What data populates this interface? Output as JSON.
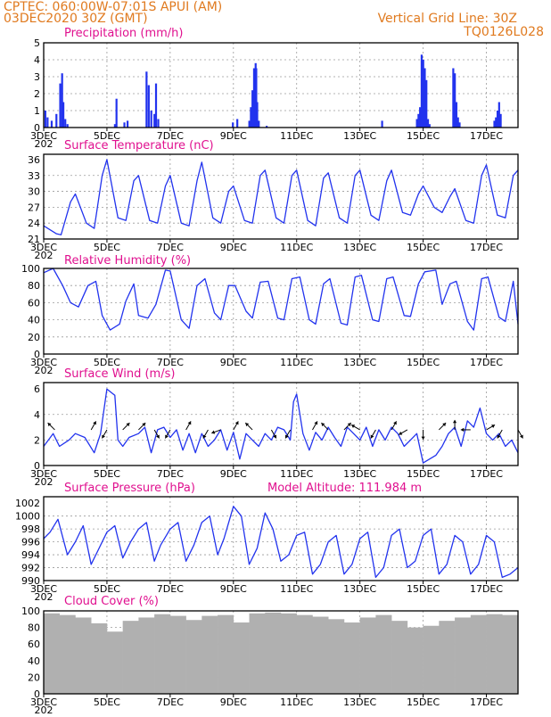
{
  "header": {
    "line1_left": "CPTEC:   060:00W-07:01S   APUI (AM)",
    "line2_left": "03DEC2020 30Z (GMT)",
    "line1_right": "Vertical Grid Line: 30Z",
    "line2_right": "TQ0126L028"
  },
  "x_axis": {
    "ticks": [
      "3DEC",
      "5DEC",
      "7DEC",
      "9DEC",
      "11DEC",
      "13DEC",
      "15DEC",
      "17DEC"
    ],
    "tick_day_offsets": [
      0,
      2,
      4,
      6,
      8,
      10,
      12,
      14
    ],
    "range_days": [
      0,
      15
    ],
    "year_fragment": "202"
  },
  "panels": {
    "precip": {
      "title": "Precipitation (mm/h)"
    },
    "temp": {
      "title": "Surface Temperature (nC)"
    },
    "rh": {
      "title": "Relative Humidity (%)"
    },
    "wind": {
      "title": "Surface Wind (m/s)"
    },
    "pres": {
      "title": "Surface Pressure (hPa)",
      "extra": "Model Altitude: 111.984 m"
    },
    "cloud": {
      "title": "Cloud Cover (%)"
    }
  },
  "colors": {
    "series": "#2233ee",
    "cloud": "#b0b0b0",
    "title": "#e0108f",
    "header": "#e07a1f",
    "arrow": "#000000"
  },
  "chart_data": [
    {
      "type": "bar",
      "name": "precip",
      "ylim": [
        0,
        5
      ],
      "yticks": [
        0,
        1,
        2,
        3,
        4,
        5
      ],
      "x": [
        0.05,
        0.12,
        0.25,
        0.4,
        0.52,
        0.58,
        0.62,
        0.68,
        0.75,
        2.25,
        2.3,
        2.55,
        2.65,
        3.25,
        3.32,
        3.4,
        3.5,
        3.55,
        3.62,
        5.98,
        6.12,
        6.5,
        6.55,
        6.6,
        6.65,
        6.7,
        6.72,
        6.75,
        6.8,
        7.05,
        10.7,
        11.8,
        11.85,
        11.9,
        11.95,
        12.0,
        12.05,
        12.1,
        12.15,
        12.2,
        12.95,
        13.0,
        13.05,
        13.1,
        13.15,
        14.25,
        14.3,
        14.35,
        14.4,
        14.45
      ],
      "values": [
        1.0,
        0.6,
        0.4,
        0.8,
        2.6,
        3.2,
        1.5,
        0.5,
        0.2,
        0.2,
        1.7,
        0.3,
        0.4,
        3.3,
        2.5,
        1.0,
        0.8,
        2.6,
        0.5,
        0.3,
        0.5,
        0.4,
        1.2,
        2.2,
        3.5,
        3.8,
        3.5,
        1.5,
        0.4,
        0.1,
        0.4,
        0.5,
        0.8,
        1.2,
        4.3,
        4.0,
        3.5,
        2.8,
        0.5,
        0.2,
        3.5,
        3.2,
        1.5,
        0.6,
        0.3,
        0.4,
        0.6,
        1.0,
        1.5,
        0.8
      ]
    },
    {
      "type": "line",
      "name": "temp",
      "ylim": [
        21,
        37
      ],
      "yticks": [
        21,
        24,
        27,
        30,
        33,
        36
      ],
      "x": [
        0,
        0.4,
        0.55,
        0.85,
        1.0,
        1.35,
        1.6,
        1.85,
        2.0,
        2.35,
        2.6,
        2.85,
        3.0,
        3.35,
        3.6,
        3.85,
        4.0,
        4.35,
        4.6,
        4.85,
        5.0,
        5.35,
        5.6,
        5.85,
        6.0,
        6.35,
        6.6,
        6.85,
        7.0,
        7.35,
        7.6,
        7.85,
        8.0,
        8.35,
        8.6,
        8.85,
        9.0,
        9.35,
        9.6,
        9.85,
        10.0,
        10.35,
        10.6,
        10.85,
        11.0,
        11.35,
        11.6,
        11.85,
        12.0,
        12.35,
        12.6,
        12.85,
        13.0,
        13.35,
        13.6,
        13.85,
        14.0,
        14.35,
        14.6,
        14.85,
        15.0
      ],
      "values": [
        23.5,
        22.0,
        21.8,
        28.0,
        29.5,
        24.0,
        23.0,
        33.0,
        36.0,
        25.0,
        24.5,
        32.0,
        33.0,
        24.5,
        24.0,
        31.0,
        33.0,
        24.0,
        23.5,
        32.0,
        35.5,
        25.0,
        24.0,
        30.0,
        31.0,
        24.5,
        24.0,
        33.0,
        34.0,
        25.0,
        24.0,
        33.0,
        34.0,
        24.5,
        23.5,
        32.5,
        33.5,
        25.0,
        24.0,
        33.0,
        34.0,
        25.5,
        24.5,
        32.0,
        34.0,
        26.0,
        25.5,
        29.5,
        31.0,
        27.0,
        26.0,
        29.0,
        30.5,
        24.5,
        24.0,
        33.0,
        35.0,
        25.5,
        25.0,
        33.0,
        34.0
      ]
    },
    {
      "type": "line",
      "name": "rh",
      "ylim": [
        0,
        100
      ],
      "yticks": [
        0,
        20,
        40,
        60,
        80,
        100
      ],
      "x": [
        0,
        0.3,
        0.6,
        0.85,
        1.1,
        1.4,
        1.65,
        1.85,
        2.1,
        2.4,
        2.6,
        2.85,
        3.0,
        3.3,
        3.55,
        3.85,
        4.0,
        4.35,
        4.6,
        4.85,
        5.1,
        5.4,
        5.6,
        5.85,
        6.05,
        6.4,
        6.6,
        6.85,
        7.1,
        7.4,
        7.6,
        7.85,
        8.1,
        8.4,
        8.6,
        8.85,
        9.05,
        9.4,
        9.6,
        9.85,
        10.05,
        10.4,
        10.6,
        10.85,
        11.05,
        11.4,
        11.6,
        11.85,
        12.05,
        12.4,
        12.6,
        12.85,
        13.05,
        13.4,
        13.6,
        13.85,
        14.05,
        14.4,
        14.6,
        14.85,
        15.0
      ],
      "values": [
        95,
        100,
        80,
        60,
        55,
        80,
        85,
        45,
        28,
        35,
        62,
        82,
        45,
        42,
        58,
        98,
        97,
        40,
        30,
        80,
        88,
        48,
        40,
        80,
        80,
        50,
        42,
        84,
        85,
        42,
        40,
        88,
        90,
        40,
        35,
        82,
        88,
        36,
        34,
        90,
        92,
        40,
        38,
        88,
        90,
        45,
        44,
        82,
        96,
        98,
        58,
        82,
        85,
        38,
        28,
        88,
        90,
        43,
        38,
        85,
        35
      ]
    },
    {
      "type": "line",
      "name": "wind",
      "ylim": [
        0,
        6.5
      ],
      "yticks": [
        0,
        2,
        4,
        6
      ],
      "x": [
        0,
        0.3,
        0.5,
        0.8,
        1.0,
        1.3,
        1.6,
        1.8,
        2.0,
        2.25,
        2.35,
        2.5,
        2.7,
        3.0,
        3.2,
        3.4,
        3.6,
        3.8,
        4.0,
        4.2,
        4.4,
        4.6,
        4.8,
        5.0,
        5.2,
        5.4,
        5.6,
        5.8,
        6.0,
        6.2,
        6.4,
        6.6,
        6.8,
        7.0,
        7.2,
        7.4,
        7.6,
        7.8,
        7.9,
        8.0,
        8.2,
        8.4,
        8.6,
        8.8,
        9.0,
        9.2,
        9.4,
        9.6,
        9.8,
        10.0,
        10.2,
        10.4,
        10.6,
        10.8,
        11.0,
        11.2,
        11.4,
        11.6,
        11.8,
        12.0,
        12.2,
        12.4,
        12.6,
        12.8,
        13.0,
        13.2,
        13.4,
        13.6,
        13.8,
        14.0,
        14.2,
        14.4,
        14.6,
        14.8,
        15.0
      ],
      "values": [
        1.5,
        2.5,
        1.5,
        2.0,
        2.5,
        2.2,
        1.0,
        2.5,
        6.0,
        5.5,
        2.0,
        1.5,
        2.2,
        2.5,
        3.0,
        1.0,
        2.8,
        3.0,
        2.2,
        2.8,
        1.2,
        2.5,
        1.0,
        2.5,
        1.5,
        2.0,
        2.8,
        1.2,
        2.6,
        0.5,
        2.5,
        2.0,
        1.5,
        2.5,
        2.0,
        3.0,
        2.8,
        2.0,
        5.0,
        5.6,
        2.5,
        1.2,
        2.6,
        2.0,
        3.0,
        2.2,
        1.5,
        3.0,
        2.5,
        2.0,
        3.0,
        1.5,
        2.8,
        2.0,
        3.0,
        2.5,
        1.5,
        2.0,
        2.5,
        0.2,
        0.5,
        0.8,
        1.5,
        2.5,
        3.0,
        1.5,
        3.5,
        3.0,
        4.5,
        2.5,
        2.0,
        2.5,
        1.5,
        2.0,
        1.0
      ],
      "arrows_x": [
        0.35,
        1.5,
        2.0,
        2.5,
        3.0,
        3.5,
        4.0,
        4.5,
        5.2,
        5.6,
        6.0,
        6.6,
        7.2,
        7.8,
        8.5,
        9.0,
        9.5,
        10.0,
        10.5,
        11.0,
        11.5,
        12.0,
        12.5,
        13.0,
        13.5,
        14.0,
        14.5,
        15.0
      ],
      "arrows_dir_deg": [
        135,
        60,
        240,
        45,
        45,
        300,
        240,
        60,
        240,
        200,
        60,
        135,
        300,
        240,
        60,
        135,
        45,
        150,
        240,
        60,
        210,
        270,
        45,
        90,
        180,
        30,
        240,
        300
      ]
    },
    {
      "type": "line",
      "name": "pres",
      "ylim": [
        990,
        1003
      ],
      "yticks": [
        990,
        992,
        994,
        996,
        998,
        1000,
        1002
      ],
      "x": [
        0,
        0.2,
        0.45,
        0.75,
        1.0,
        1.25,
        1.5,
        1.7,
        2.0,
        2.25,
        2.5,
        2.75,
        3.0,
        3.25,
        3.5,
        3.7,
        4.0,
        4.25,
        4.5,
        4.75,
        5.0,
        5.25,
        5.5,
        5.7,
        6.0,
        6.25,
        6.5,
        6.75,
        7.0,
        7.25,
        7.5,
        7.75,
        8.0,
        8.25,
        8.5,
        8.75,
        9.0,
        9.25,
        9.5,
        9.75,
        10.0,
        10.25,
        10.5,
        10.75,
        11.0,
        11.25,
        11.5,
        11.75,
        12.0,
        12.25,
        12.5,
        12.75,
        13.0,
        13.25,
        13.5,
        13.75,
        14.0,
        14.25,
        14.5,
        14.75,
        15.0
      ],
      "values": [
        996.5,
        997.5,
        999.5,
        994,
        996,
        998.5,
        992.5,
        994.5,
        997.5,
        998.5,
        993.5,
        996,
        998,
        999,
        993,
        995.5,
        998,
        999,
        993,
        995.5,
        999,
        1000,
        994,
        996.5,
        1001.5,
        1000,
        992.5,
        995,
        1000.5,
        998,
        993,
        994,
        997,
        997.5,
        991,
        992.5,
        996,
        997,
        991,
        992.5,
        996.5,
        997.5,
        990.5,
        992,
        997,
        998,
        992,
        993,
        997,
        998,
        991,
        992.5,
        997,
        996,
        991,
        992.5,
        997,
        996,
        990.5,
        991,
        992
      ]
    },
    {
      "type": "bar",
      "name": "cloud",
      "ylim": [
        0,
        100
      ],
      "yticks": [
        0,
        20,
        40,
        60,
        80,
        100
      ],
      "x": [
        0,
        0.5,
        1.0,
        1.5,
        2.0,
        2.5,
        3.0,
        3.5,
        4.0,
        4.5,
        5.0,
        5.5,
        6.0,
        6.5,
        7.0,
        7.5,
        8.0,
        8.5,
        9.0,
        9.5,
        10.0,
        10.5,
        11.0,
        11.5,
        12.0,
        12.5,
        13.0,
        13.5,
        14.0,
        14.5,
        15.0
      ],
      "values": [
        97,
        95,
        92,
        85,
        75,
        88,
        92,
        96,
        94,
        89,
        94,
        95,
        86,
        97,
        98,
        97,
        95,
        93,
        90,
        86,
        92,
        95,
        88,
        80,
        82,
        88,
        92,
        95,
        96,
        95,
        90
      ]
    }
  ]
}
